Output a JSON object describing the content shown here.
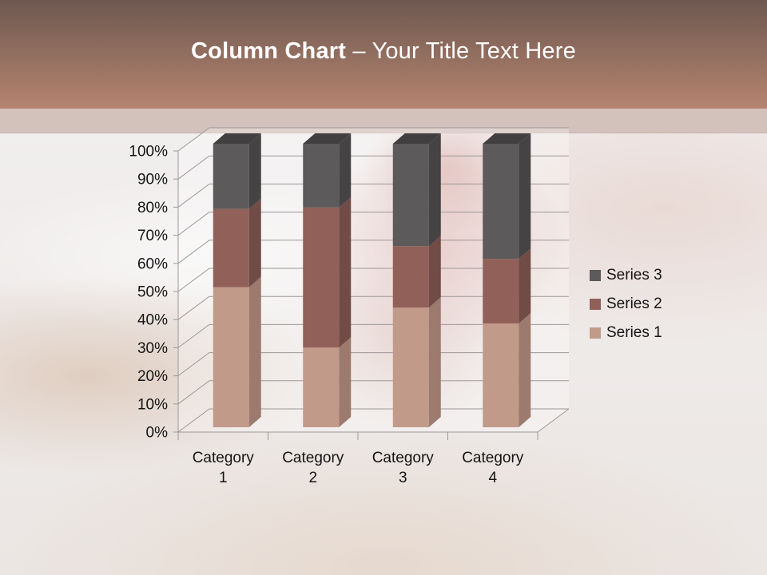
{
  "slide": {
    "title": {
      "bold": "Column Chart",
      "rest": " – Your Title Text Here"
    },
    "accent_colors": {
      "header_top": "#6e5850",
      "header_bottom": "#b5846f",
      "band": "#d3c1bb"
    }
  },
  "chart_data": {
    "type": "bar",
    "subtype": "3d-100-percent-stacked-column",
    "title": "",
    "xlabel": "",
    "ylabel": "",
    "categories": [
      "Category 1",
      "Category 2",
      "Category 3",
      "Category 4"
    ],
    "series": [
      {
        "name": "Series 1",
        "values": [
          49.4,
          28.1,
          42.2,
          36.6
        ],
        "unit": "percent-of-total",
        "color_front": "#c29a8a",
        "color_side": "#9c7a6d",
        "color_top": "#d0a998"
      },
      {
        "name": "Series 2",
        "values": [
          27.6,
          49.4,
          21.7,
          22.8
        ],
        "unit": "percent-of-total",
        "color_front": "#916059",
        "color_side": "#714b46",
        "color_top": "#7d534e"
      },
      {
        "name": "Series 3",
        "values": [
          23.0,
          22.5,
          36.1,
          40.6
        ],
        "unit": "percent-of-total",
        "color_front": "#5c5a5b",
        "color_side": "#454344",
        "color_top": "#413f40"
      }
    ],
    "y_axis": {
      "min": 0,
      "max": 100,
      "step": 10,
      "suffix": "%",
      "tick_labels": [
        "0%",
        "10%",
        "20%",
        "30%",
        "40%",
        "50%",
        "60%",
        "70%",
        "80%",
        "90%",
        "100%"
      ]
    },
    "grid": true,
    "gridline_color": "#9e9798",
    "axis_text_color": "#141414",
    "legend": {
      "position": "right",
      "order_top_to_bottom": [
        "Series 3",
        "Series 2",
        "Series 1"
      ]
    }
  }
}
